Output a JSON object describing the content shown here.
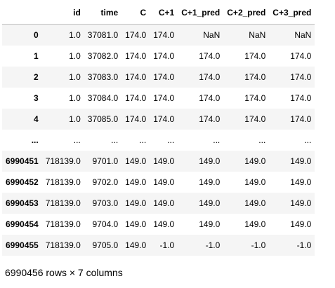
{
  "dataframe": {
    "index_header": "",
    "columns": [
      "id",
      "time",
      "C",
      "C+1",
      "C+1_pred",
      "C+2_pred",
      "C+3_pred"
    ],
    "rows": [
      {
        "index": "0",
        "cells": [
          "1.0",
          "37081.0",
          "174.0",
          "174.0",
          "NaN",
          "NaN",
          "NaN"
        ]
      },
      {
        "index": "1",
        "cells": [
          "1.0",
          "37082.0",
          "174.0",
          "174.0",
          "174.0",
          "174.0",
          "174.0"
        ]
      },
      {
        "index": "2",
        "cells": [
          "1.0",
          "37083.0",
          "174.0",
          "174.0",
          "174.0",
          "174.0",
          "174.0"
        ]
      },
      {
        "index": "3",
        "cells": [
          "1.0",
          "37084.0",
          "174.0",
          "174.0",
          "174.0",
          "174.0",
          "174.0"
        ]
      },
      {
        "index": "4",
        "cells": [
          "1.0",
          "37085.0",
          "174.0",
          "174.0",
          "174.0",
          "174.0",
          "174.0"
        ]
      },
      {
        "index": "...",
        "cells": [
          "...",
          "...",
          "...",
          "...",
          "...",
          "...",
          "..."
        ]
      },
      {
        "index": "6990451",
        "cells": [
          "718139.0",
          "9701.0",
          "149.0",
          "149.0",
          "149.0",
          "149.0",
          "149.0"
        ]
      },
      {
        "index": "6990452",
        "cells": [
          "718139.0",
          "9702.0",
          "149.0",
          "149.0",
          "149.0",
          "149.0",
          "149.0"
        ]
      },
      {
        "index": "6990453",
        "cells": [
          "718139.0",
          "9703.0",
          "149.0",
          "149.0",
          "149.0",
          "149.0",
          "149.0"
        ]
      },
      {
        "index": "6990454",
        "cells": [
          "718139.0",
          "9704.0",
          "149.0",
          "149.0",
          "149.0",
          "149.0",
          "149.0"
        ]
      },
      {
        "index": "6990455",
        "cells": [
          "718139.0",
          "9705.0",
          "149.0",
          "-1.0",
          "-1.0",
          "-1.0",
          "-1.0"
        ]
      }
    ],
    "shape_text": "6990456 rows × 7 columns"
  },
  "colors": {
    "striped_row": "#f5f5f5",
    "header_border": "#bdbdbd",
    "text": "#000000"
  }
}
